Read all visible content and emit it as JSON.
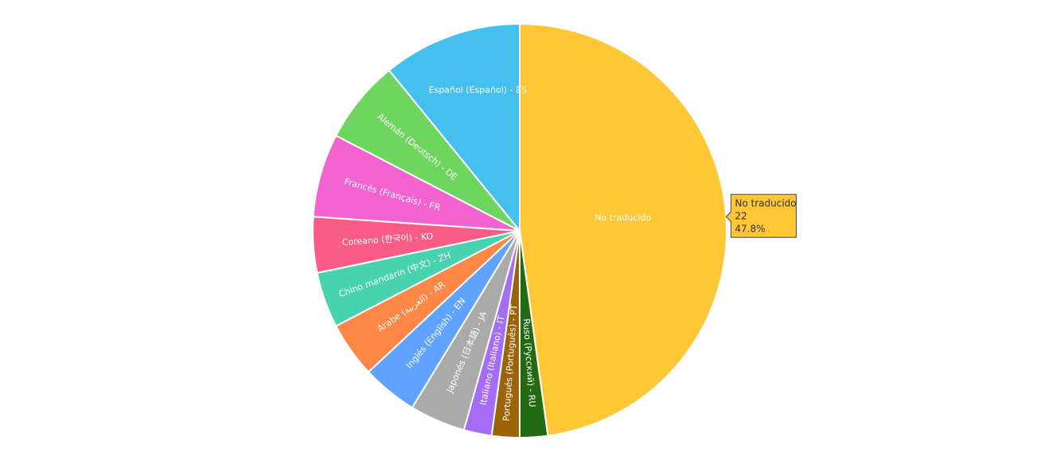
{
  "chart_data": {
    "type": "pie",
    "categories": [
      "No traducido",
      "Ruso (Русский) - RU",
      "Portugués (Português) - PT",
      "Italiano (Italiano) - IT",
      "Japonés (日本語) - JA",
      "Inglés (English) - EN",
      "Árabe (العربية) - AR",
      "Chino mandarín (中文) - ZH",
      "Coreano (한국어) - KO",
      "Francés (Français) - FR",
      "Alemán (Deutsch) - DE",
      "Español (Español) - ES"
    ],
    "values": [
      22,
      1,
      1,
      1,
      2,
      2,
      2,
      2,
      2,
      3,
      3,
      5
    ],
    "colors": [
      "#ffc636",
      "#226b13",
      "#9c6408",
      "#a56cf7",
      "#aaaaaa",
      "#5fa2ff",
      "#ff8746",
      "#48d3b0",
      "#fb5c86",
      "#f263d0",
      "#6ed65f",
      "#45bfee"
    ],
    "tooltip": {
      "slice": 0,
      "percent": "47.8%"
    }
  }
}
